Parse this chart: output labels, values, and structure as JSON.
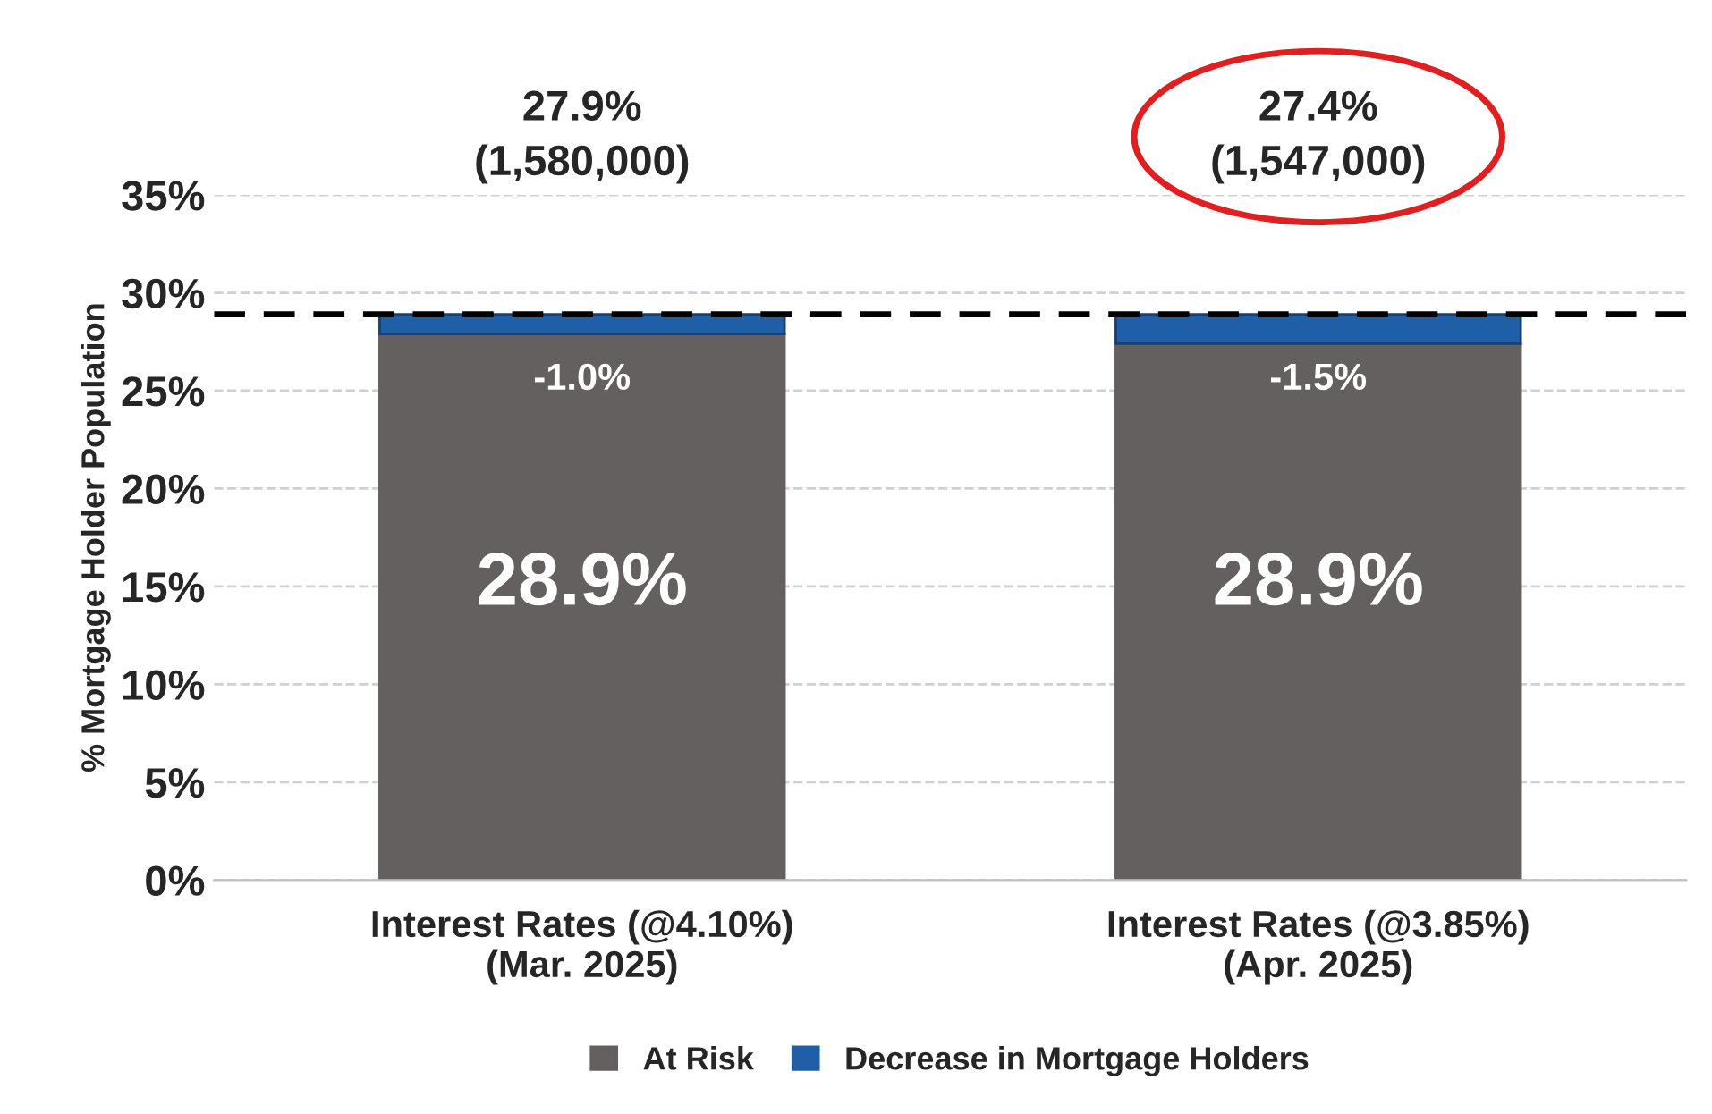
{
  "chart_data": {
    "type": "bar",
    "stacked": true,
    "ylabel": "% Mortgage Holder Population",
    "categories": [
      "Interest Rates (@4.10%)\n(Mar. 2025)",
      "Interest Rates (@3.85%)\n(Apr. 2025)"
    ],
    "series": [
      {
        "name": "At Risk",
        "color": "#646060",
        "values": [
          27.9,
          27.4
        ]
      },
      {
        "name": "Decrease in Mortgage Holders",
        "color": "#1f5fa8",
        "values": [
          1.0,
          1.5
        ]
      }
    ],
    "ylim": [
      0,
      35
    ],
    "yticks": [
      {
        "value": 0,
        "label": "0%"
      },
      {
        "value": 5,
        "label": "5%"
      },
      {
        "value": 10,
        "label": "10%"
      },
      {
        "value": 15,
        "label": "15%"
      },
      {
        "value": 20,
        "label": "20%"
      },
      {
        "value": 25,
        "label": "25%"
      },
      {
        "value": 30,
        "label": "30%"
      },
      {
        "value": 35,
        "label": "35%"
      }
    ],
    "ref_lines": [
      {
        "axis": "y",
        "value": 28.9,
        "color": "#000000",
        "line_style": "dashed"
      }
    ],
    "annotations": [
      "27.9%\n(1,580,000)",
      "27.4%\n(1,547,000)",
      "28.9%",
      "28.9%",
      "-1.0%",
      "-1.5%"
    ],
    "grid": "y",
    "legend": "bottom"
  }
}
